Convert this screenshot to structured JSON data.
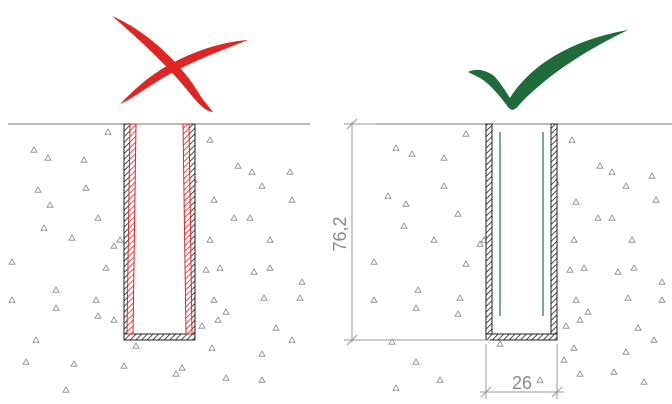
{
  "figure": {
    "left_panel": {
      "status_icon": "cross-mark-icon",
      "status_color": "#e02525"
    },
    "right_panel": {
      "status_icon": "check-mark-icon",
      "status_color": "#1f6b3a"
    }
  },
  "dimensions": {
    "depth_label": "76,2",
    "width_label": "26"
  },
  "colors": {
    "hatch_wrong": "#e02525",
    "hatch_correct": "#222222",
    "inner_line": "#1f7a3a",
    "dimension": "#9a9a9a"
  }
}
